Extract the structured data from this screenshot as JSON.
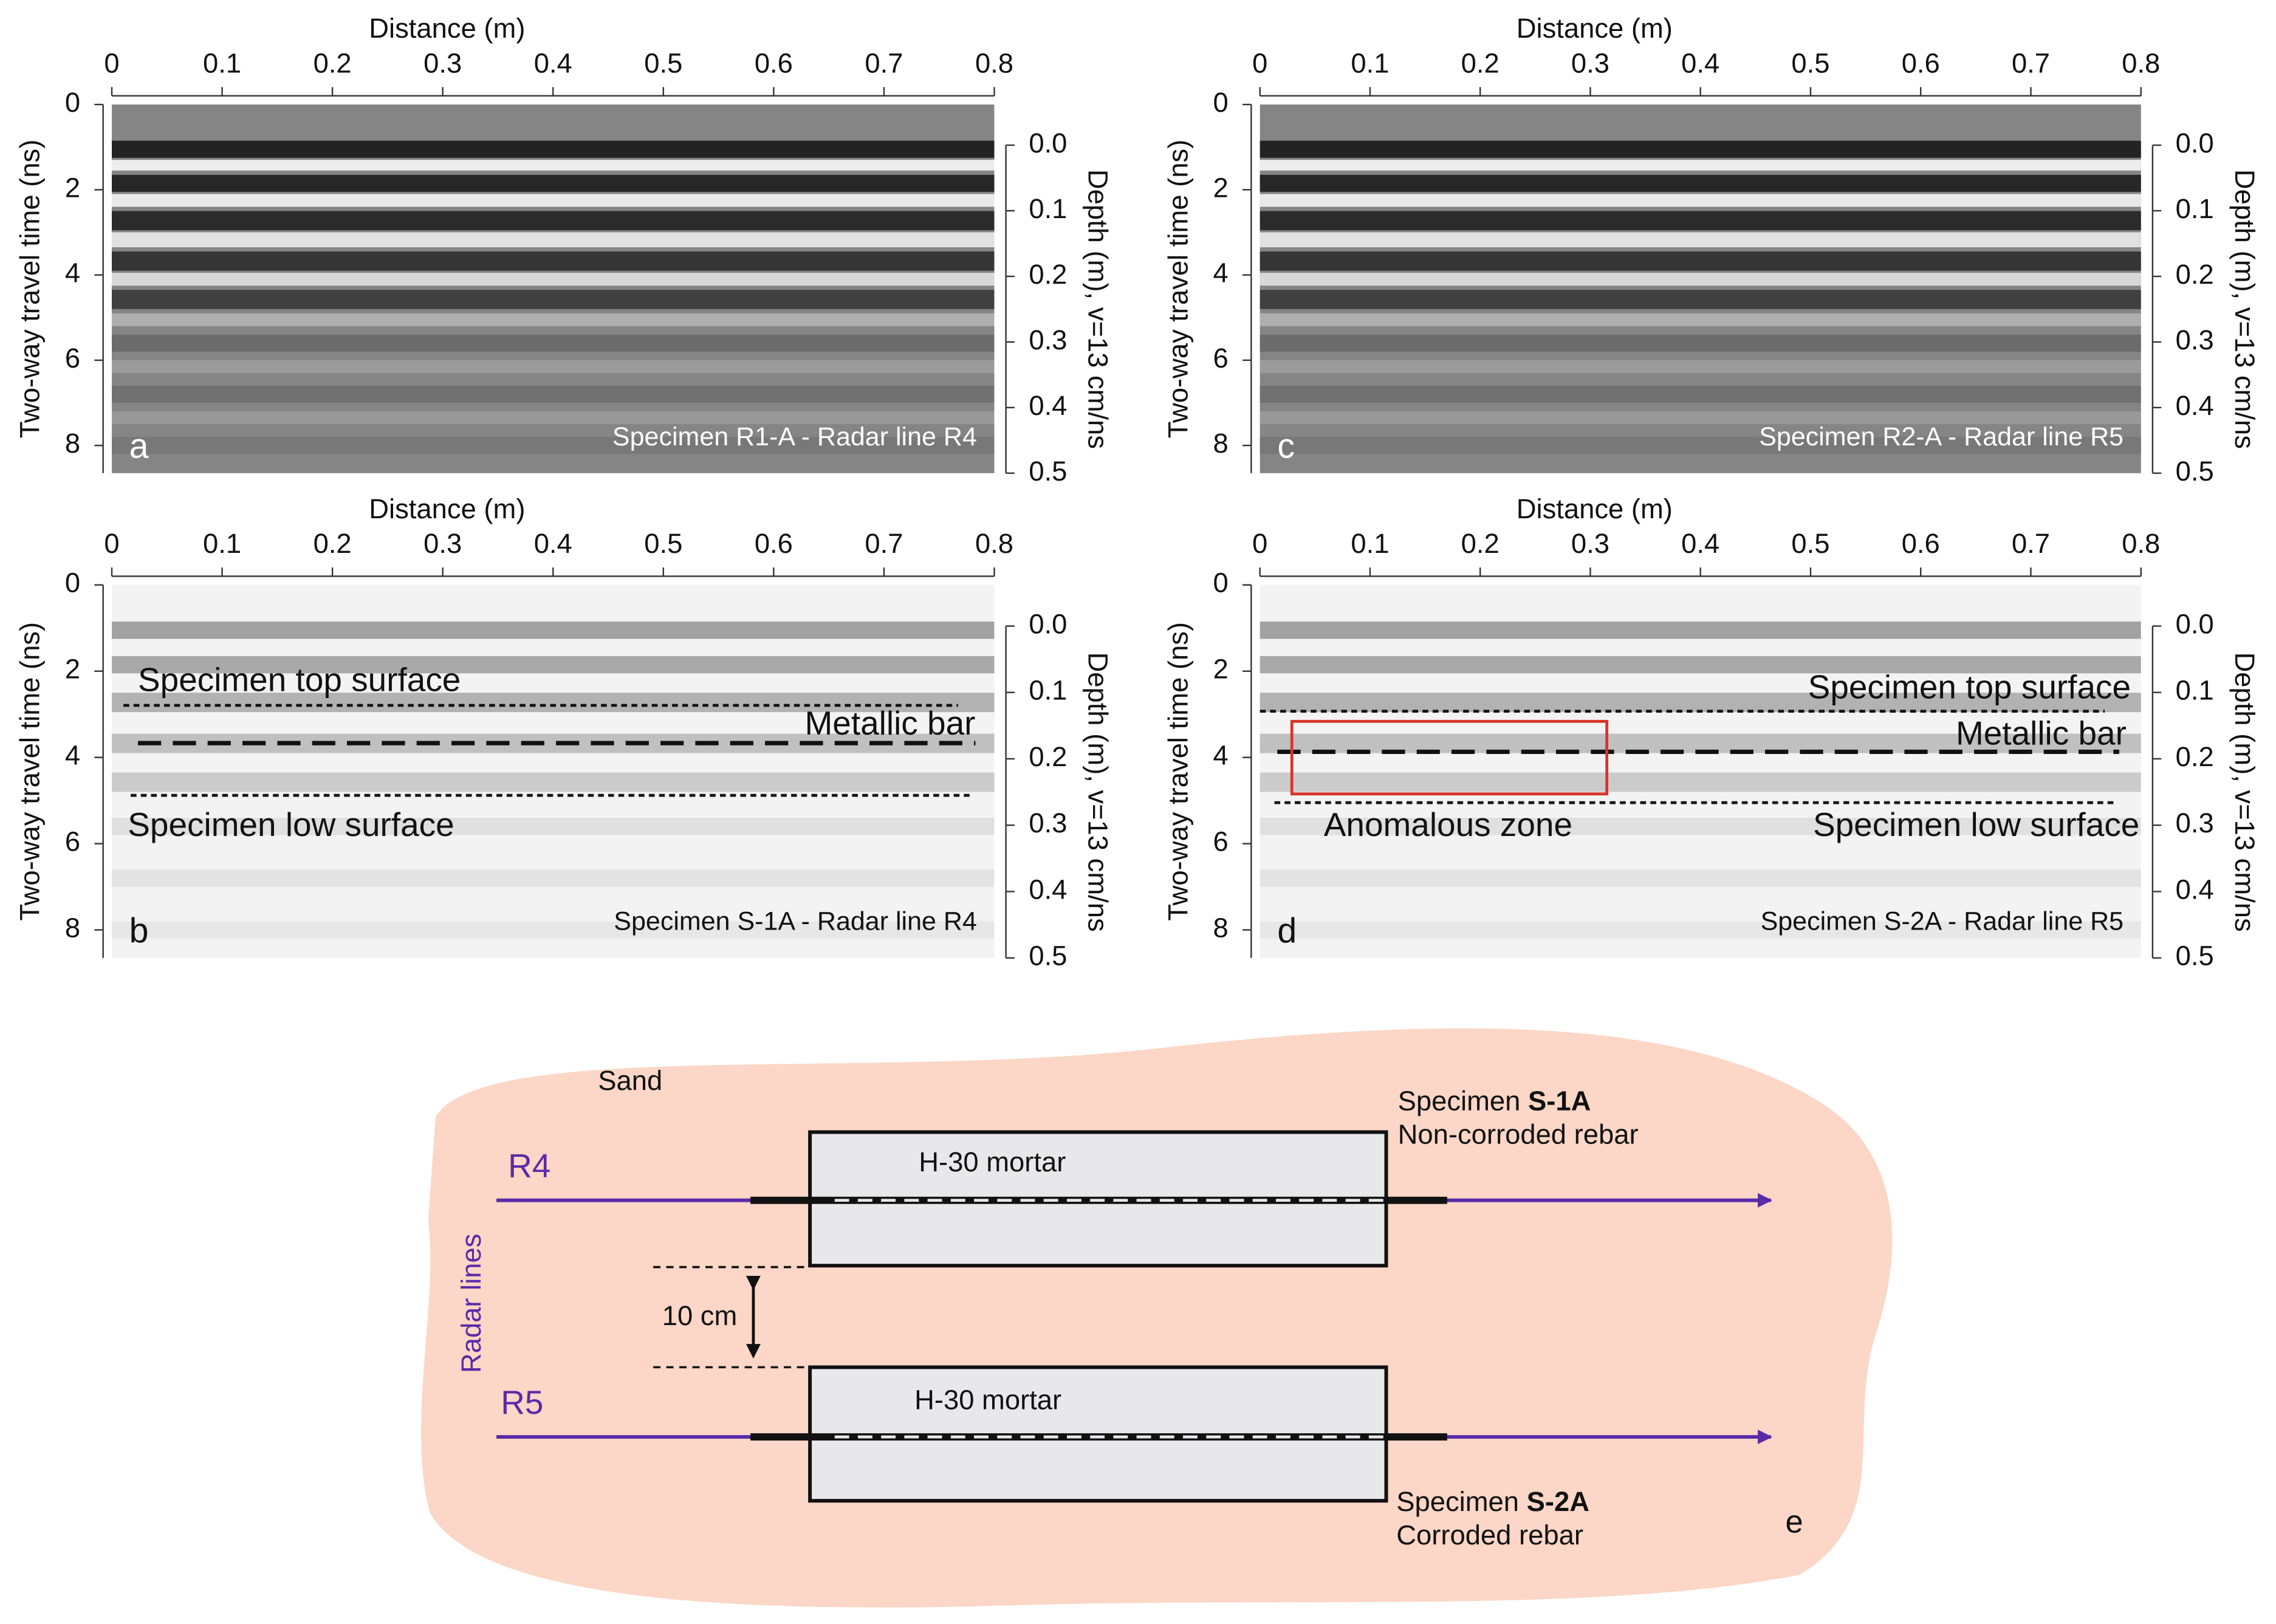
{
  "chart_data": [
    {
      "type": "radargram",
      "panel_label": "a",
      "caption": "Specimen R1-A - Radar line R4",
      "shading": "dark",
      "xlabel": "Distance (m)",
      "ylabel": "Two-way travel time (ns)",
      "y2label": "Depth (m), v=13 cm/ns",
      "xlim": [
        0,
        0.8
      ],
      "xticks": [
        0,
        0.1,
        0.2,
        0.3,
        0.4,
        0.5,
        0.6,
        0.7,
        0.8
      ],
      "ylim": [
        0,
        8.65
      ],
      "yticks": [
        0,
        2,
        4,
        6,
        8
      ],
      "y2lim": [
        -0.062,
        0.5
      ],
      "y2ticks": [
        {
          "value": 0,
          "label": "0.0"
        },
        0.1,
        0.2,
        0.3,
        0.4,
        0.5
      ],
      "annotations": []
    },
    {
      "type": "radargram",
      "panel_label": "b",
      "caption": "Specimen S-1A - Radar line R4",
      "shading": "light",
      "xlabel": "Distance (m)",
      "ylabel": "Two-way travel time (ns)",
      "y2label": "Depth (m), v=13 cm/ns",
      "xlim": [
        0,
        0.8
      ],
      "xticks": [
        0,
        0.1,
        0.2,
        0.3,
        0.4,
        0.5,
        0.6,
        0.7,
        0.8
      ],
      "ylim": [
        0,
        8.65
      ],
      "yticks": [
        0,
        2,
        4,
        6,
        8
      ],
      "y2lim": [
        -0.062,
        0.5
      ],
      "y2ticks": [
        {
          "value": 0,
          "label": "0.0"
        },
        0.1,
        0.2,
        0.3,
        0.4,
        0.5
      ],
      "annotations": [
        "Specimen top surface",
        "Metallic bar",
        "Specimen low surface"
      ]
    },
    {
      "type": "radargram",
      "panel_label": "c",
      "caption": "Specimen R2-A - Radar line R5",
      "shading": "dark",
      "xlabel": "Distance (m)",
      "ylabel": "Two-way travel time (ns)",
      "y2label": "Depth (m), v=13 cm/ns",
      "xlim": [
        0,
        0.8
      ],
      "xticks": [
        0,
        0.1,
        0.2,
        0.3,
        0.4,
        0.5,
        0.6,
        0.7,
        0.8
      ],
      "ylim": [
        0,
        8.65
      ],
      "yticks": [
        0,
        2,
        4,
        6,
        8
      ],
      "y2lim": [
        -0.062,
        0.5
      ],
      "y2ticks": [
        {
          "value": 0,
          "label": "0.0"
        },
        0.1,
        0.2,
        0.3,
        0.4,
        0.5
      ],
      "annotations": []
    },
    {
      "type": "radargram",
      "panel_label": "d",
      "caption": "Specimen S-2A - Radar line R5",
      "shading": "light",
      "xlabel": "Distance (m)",
      "ylabel": "Two-way travel time (ns)",
      "y2label": "Depth (m), v=13 cm/ns",
      "xlim": [
        0,
        0.8
      ],
      "xticks": [
        0,
        0.1,
        0.2,
        0.3,
        0.4,
        0.5,
        0.6,
        0.7,
        0.8
      ],
      "ylim": [
        0,
        8.65
      ],
      "yticks": [
        0,
        2,
        4,
        6,
        8
      ],
      "y2lim": [
        -0.062,
        0.5
      ],
      "y2ticks": [
        {
          "value": 0,
          "label": "0.0"
        },
        0.1,
        0.2,
        0.3,
        0.4,
        0.5
      ],
      "annotations": [
        "Specimen top surface",
        "Metallic bar",
        "Anomalous zone",
        "Specimen low surface"
      ]
    }
  ],
  "diagram": {
    "panel_label": "e",
    "medium": "Sand",
    "radar_lines_label": "Radar lines",
    "spacing": "10 cm",
    "lines": [
      "R4",
      "R5"
    ],
    "specimens": [
      {
        "prefix": "Specimen",
        "id": "S-1A",
        "note": "Non-corroded rebar",
        "material": "H-30 mortar"
      },
      {
        "prefix": "Specimen",
        "id": "S-2A",
        "note": "Corroded rebar",
        "material": "H-30 mortar"
      }
    ]
  }
}
